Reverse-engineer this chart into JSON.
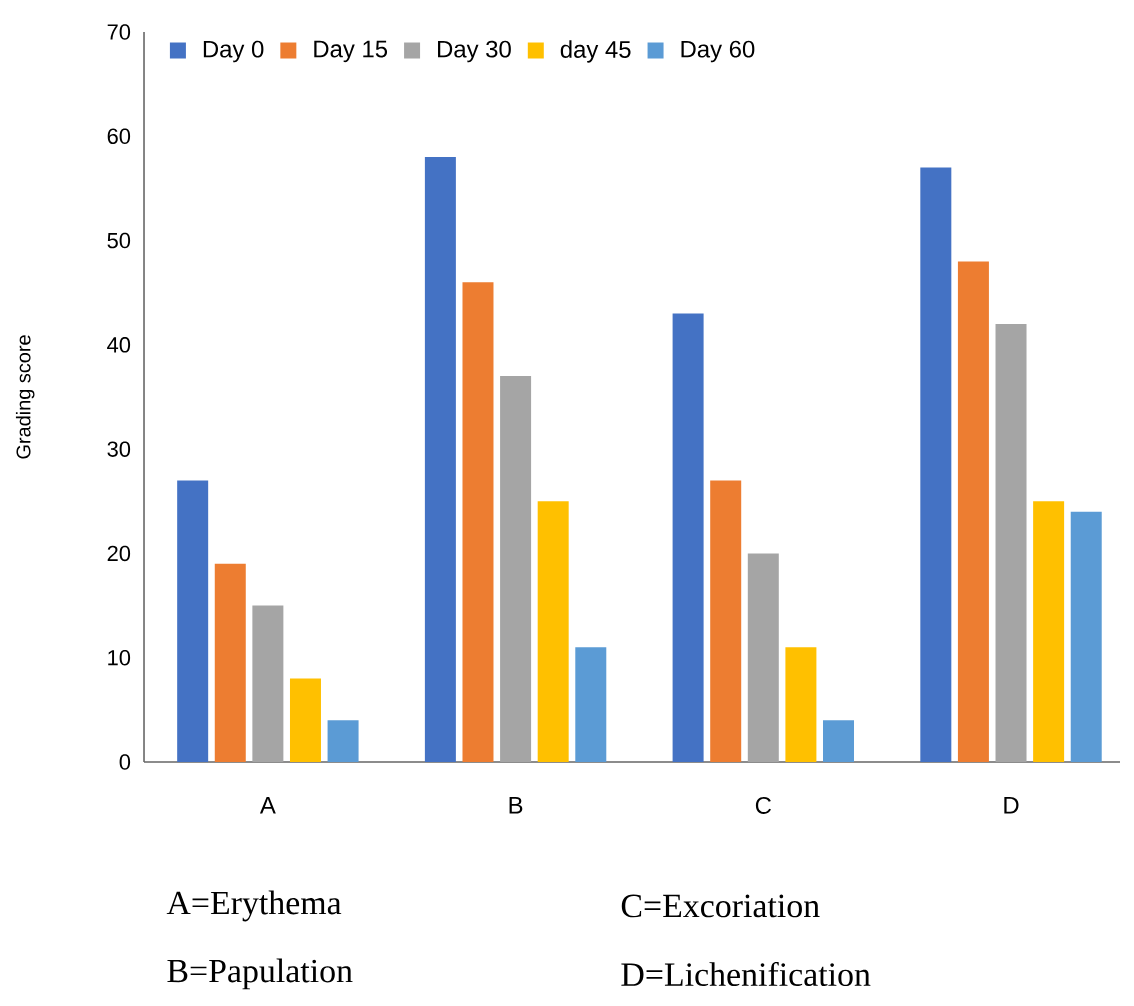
{
  "chart_data": {
    "type": "bar",
    "ylabel": "Grading score",
    "categories": [
      "A",
      "B",
      "C",
      "D"
    ],
    "series": [
      {
        "name": "Day 0",
        "color": "#4472c4",
        "values": [
          27,
          58,
          43,
          57
        ]
      },
      {
        "name": "Day 15",
        "color": "#ed7d31",
        "values": [
          19,
          46,
          27,
          48
        ]
      },
      {
        "name": "Day 30",
        "color": "#a5a5a5",
        "values": [
          15,
          37,
          20,
          42
        ]
      },
      {
        "name": "day 45",
        "color": "#ffc000",
        "values": [
          8,
          25,
          11,
          25
        ]
      },
      {
        "name": "Day 60",
        "color": "#5b9bd5",
        "values": [
          4,
          11,
          4,
          24
        ]
      }
    ],
    "ylim": [
      0,
      70
    ],
    "yticks": [
      0,
      10,
      20,
      30,
      40,
      50,
      60,
      70
    ],
    "legend": "top",
    "grid": false,
    "annotations": [
      "A=Erythema",
      "C=Excoriation",
      "B=Papulation",
      "D=Lichenification"
    ]
  }
}
